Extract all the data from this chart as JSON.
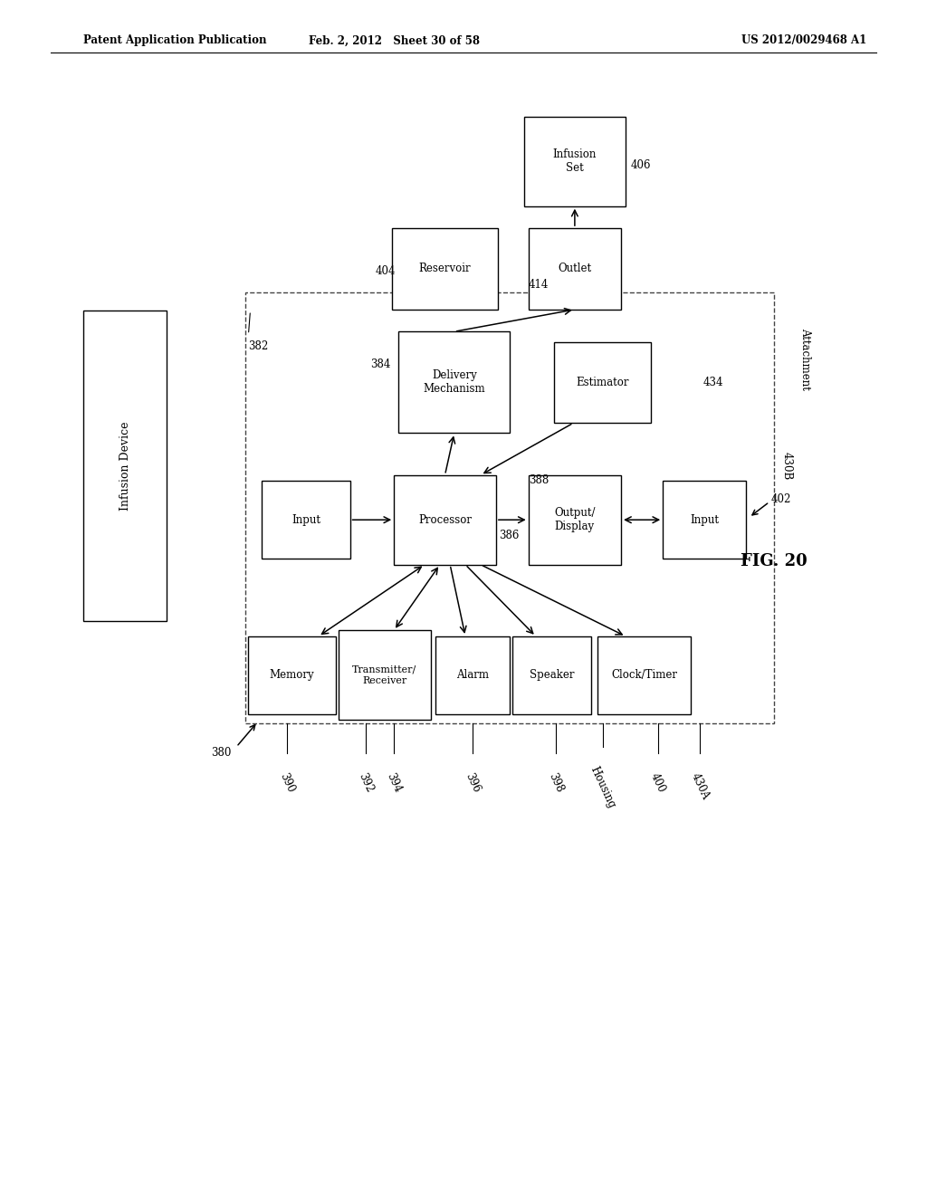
{
  "header_left": "Patent Application Publication",
  "header_mid": "Feb. 2, 2012   Sheet 30 of 58",
  "header_right": "US 2012/0029468 A1",
  "fig_label": "FIG. 20",
  "bg_color": "#ffffff"
}
